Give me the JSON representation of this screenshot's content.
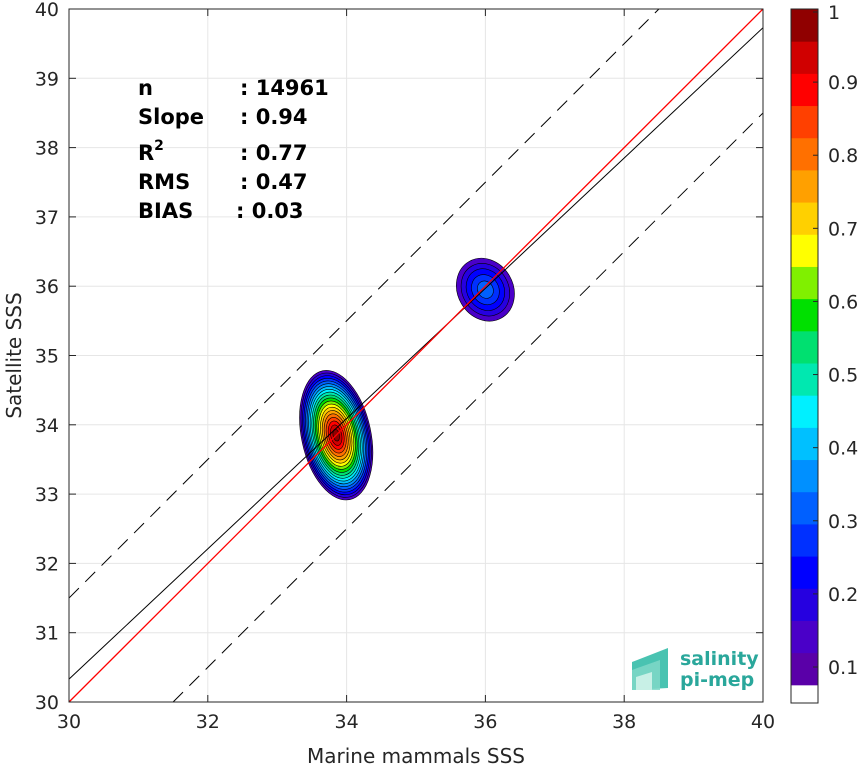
{
  "chart_data": {
    "type": "heatmap",
    "title": "",
    "xlabel": "Marine mammals SSS",
    "ylabel": "Satellite SSS",
    "xlim": [
      30,
      40
    ],
    "ylim": [
      30,
      40
    ],
    "xticks": [
      "30",
      "32",
      "34",
      "36",
      "38",
      "40"
    ],
    "yticks": [
      "30",
      "31",
      "32",
      "33",
      "34",
      "35",
      "36",
      "37",
      "38",
      "39",
      "40"
    ],
    "grid": true,
    "stats": [
      {
        "label": "n",
        "value": ": 14961"
      },
      {
        "label": "Slope",
        "value": ": 0.94"
      },
      {
        "label": "R",
        "sup": "2",
        "value": ": 0.77"
      },
      {
        "label": "RMS",
        "value": ": 0.47"
      },
      {
        "label": "BIAS",
        "value": ": 0.03"
      }
    ],
    "lines": {
      "identity": {
        "color": "#ff0000",
        "slope": 1,
        "intercept": 0
      },
      "fit": {
        "color": "#000000",
        "slope": 0.94,
        "intercept": 2.13
      },
      "envelope_offset": 1.5
    },
    "density_clusters": [
      {
        "cx": 33.85,
        "cy": 33.85,
        "sx": 0.5,
        "sy": 0.95,
        "rotation": -12,
        "peak": 1.0
      },
      {
        "cx": 36.0,
        "cy": 35.95,
        "sx": 0.4,
        "sy": 0.47,
        "rotation": -30,
        "peak": 0.25
      }
    ],
    "colorbar": {
      "ticks": [
        "0.1",
        "0.2",
        "0.3",
        "0.4",
        "0.5",
        "0.6",
        "0.7",
        "0.8",
        "0.9",
        "1"
      ],
      "range": [
        0,
        1
      ],
      "levels": 20,
      "colors": [
        "#ffffff",
        "#5a00a8",
        "#4a00c8",
        "#2600e0",
        "#0000ff",
        "#0030ff",
        "#0060ff",
        "#0090ff",
        "#00c0ff",
        "#00f0ff",
        "#00e8b0",
        "#00e070",
        "#00e000",
        "#80f000",
        "#ffff00",
        "#ffd000",
        "#ffa000",
        "#ff7000",
        "#ff4000",
        "#ff0000",
        "#d00000",
        "#900000"
      ]
    },
    "logo": {
      "line1": "salinity",
      "line2": "pi-mep"
    }
  }
}
